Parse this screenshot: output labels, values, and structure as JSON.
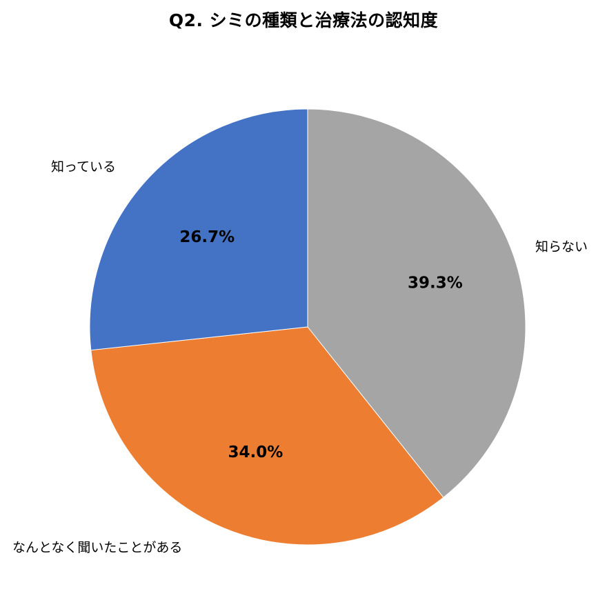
{
  "chart_data": {
    "type": "pie",
    "title": "Q2. シミの種類と治療法の認知度",
    "start": "top, clockwise",
    "legend": "none (category labels outside slices)",
    "slices": [
      {
        "label": "知らない",
        "value": 39.3,
        "value_label": "39.3%",
        "color": "#A5A5A5"
      },
      {
        "label": "なんとなく聞いたことがある",
        "value": 34.0,
        "value_label": "34.0%",
        "color": "#ED7D31"
      },
      {
        "label": "知っている",
        "value": 26.7,
        "value_label": "26.7%",
        "color": "#4472C4"
      }
    ]
  }
}
